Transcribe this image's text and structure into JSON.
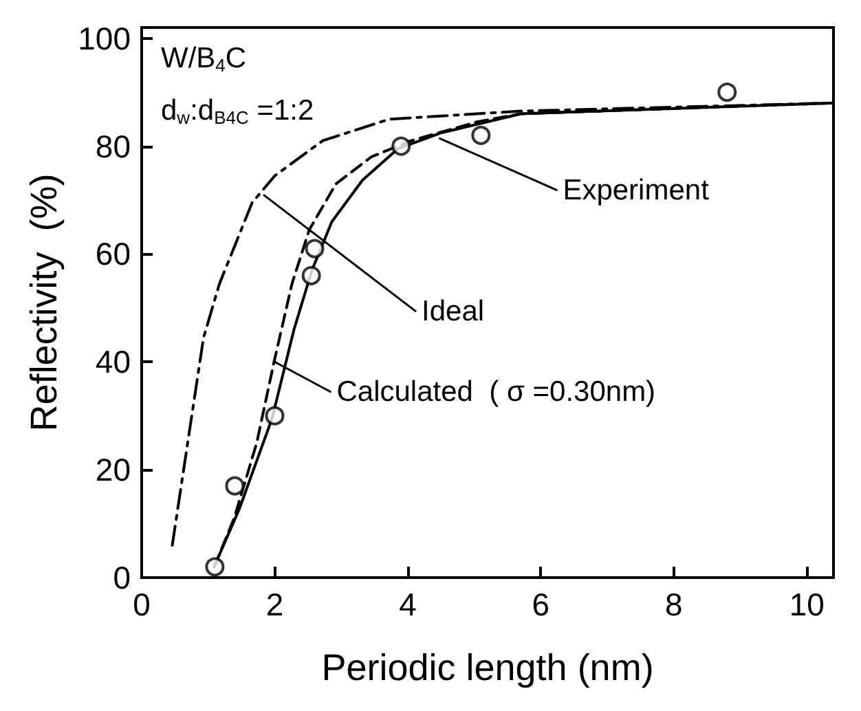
{
  "chart_data": {
    "type": "line",
    "xlabel": "Periodic length (nm)",
    "ylabel": "Reflectivity  (%)",
    "xlim": [
      0,
      10.4
    ],
    "xticks": [
      0,
      2,
      4,
      6,
      8,
      10
    ],
    "ylim": [
      0,
      102
    ],
    "yticks": [
      0,
      20,
      40,
      60,
      80,
      100
    ],
    "grid": false,
    "series": [
      {
        "color": "#000000",
        "line_style": "dashdot",
        "marker": "none",
        "x": [
          0.46,
          0.93,
          1.17,
          1.66,
          2.0,
          2.72,
          3.72,
          5.7,
          10.4
        ],
        "values": [
          6,
          44.5,
          54.5,
          69.5,
          74.5,
          81,
          85,
          86.5,
          88
        ]
      },
      {
        "color": "#000000",
        "line_style": "dashed",
        "marker": "none",
        "x": [
          1.09,
          1.39,
          1.73,
          1.99,
          2.26,
          2.52,
          2.92,
          3.45,
          4.05,
          5.04,
          5.7,
          10.4
        ],
        "values": [
          2,
          11,
          25,
          40,
          54.5,
          64.5,
          73,
          78,
          81,
          84.5,
          86,
          88
        ]
      },
      {
        "color": "#000000",
        "line_style": "solid",
        "marker": "none",
        "x": [
          1.09,
          1.47,
          1.96,
          2.29,
          2.56,
          2.86,
          3.32,
          3.85,
          4.51,
          5.7,
          10.4
        ],
        "values": [
          2,
          12.8,
          29.5,
          46,
          57,
          66,
          73.7,
          79.5,
          82.5,
          86,
          88
        ]
      },
      {
        "type": "scatter",
        "color": "#000000",
        "marker": "circle",
        "x": [
          1.1,
          1.4,
          2.0,
          2.55,
          2.6,
          3.9,
          5.1,
          8.8
        ],
        "values": [
          2,
          17,
          30,
          56,
          61,
          80,
          82,
          90
        ]
      }
    ],
    "annotations": [
      "W/B$_{4}$C",
      "d$_{w}$:d$_{B4C}$ =1:2",
      {
        "text": "Ideal",
        "x": 1.83,
        "y": 71
      },
      {
        "text": "Experiment",
        "x": 4.47,
        "y": 81.5
      },
      {
        "text": "Calculated  ( σ =0.30nm)",
        "x": 2.0,
        "y": 40
      }
    ]
  }
}
